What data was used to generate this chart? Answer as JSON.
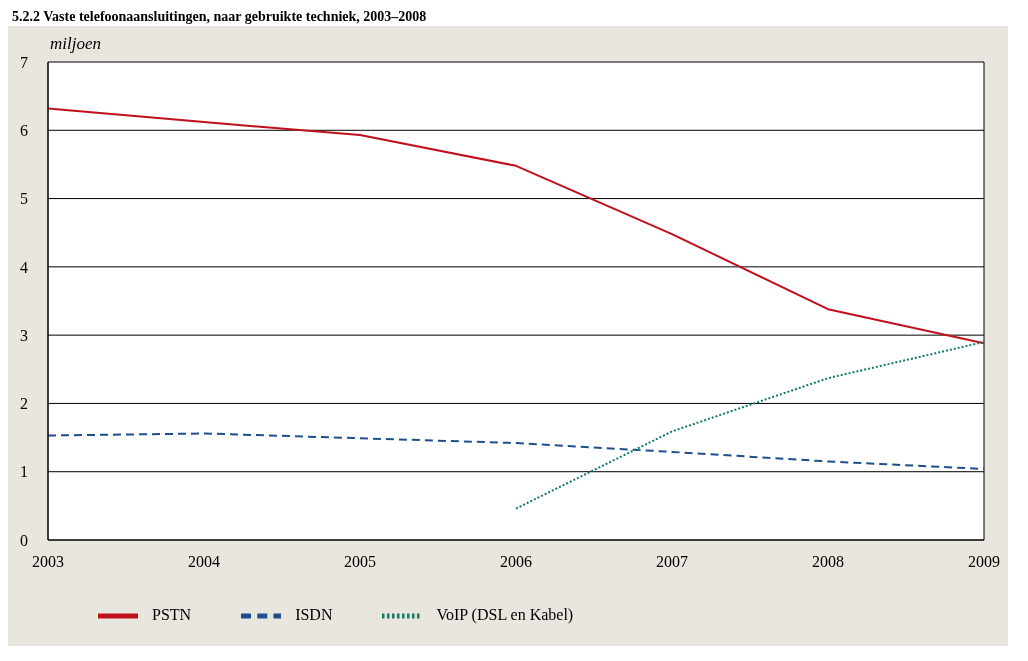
{
  "chart_data": {
    "type": "line",
    "title": "5.2.2 Vaste telefoonaansluitingen, naar gebruikte techniek, 2003–2008",
    "ylabel": "miljoen",
    "x": [
      2003,
      2004,
      2005,
      2006,
      2007,
      2008,
      2009
    ],
    "xlim": [
      2003,
      2009
    ],
    "xticks": [
      2003,
      2004,
      2005,
      2006,
      2007,
      2008,
      2009
    ],
    "ylim": [
      0,
      7
    ],
    "yticks": [
      0,
      1,
      2,
      3,
      4,
      5,
      6,
      7
    ],
    "grid": "y",
    "legend": "bottom left",
    "marker": "none",
    "series": [
      {
        "name": "PSTN",
        "color": "#c0101c",
        "line_style": "solid",
        "values": [
          6.32,
          6.12,
          5.93,
          5.48,
          4.48,
          3.38,
          2.88
        ]
      },
      {
        "name": "ISDN",
        "color": "#1f4e8c",
        "line_style": "dashed",
        "values": [
          1.53,
          1.56,
          1.49,
          1.42,
          1.29,
          1.15,
          1.04
        ]
      },
      {
        "name": "VoIP (DSL en Kabel)",
        "color": "#12786e",
        "line_style": "dotted",
        "values": [
          null,
          null,
          null,
          0.46,
          1.59,
          2.37,
          2.9
        ]
      }
    ]
  }
}
